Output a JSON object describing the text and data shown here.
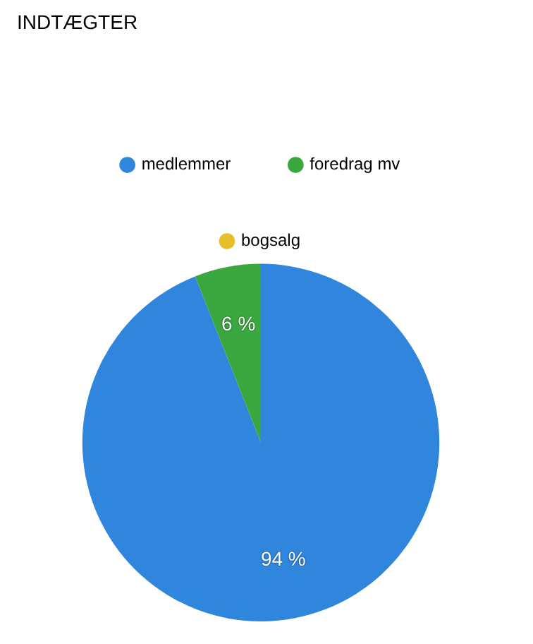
{
  "chart_data": {
    "type": "pie",
    "title": "INDTÆGTER",
    "categories": [
      "medlemmer",
      "foredrag mv",
      "bogsalg"
    ],
    "values": [
      94,
      6,
      0
    ],
    "colors": [
      "#2f86dc",
      "#3aa83e",
      "#e6bf2a"
    ],
    "value_labels": [
      "94 %",
      "6 %",
      null
    ],
    "legend": "top"
  }
}
